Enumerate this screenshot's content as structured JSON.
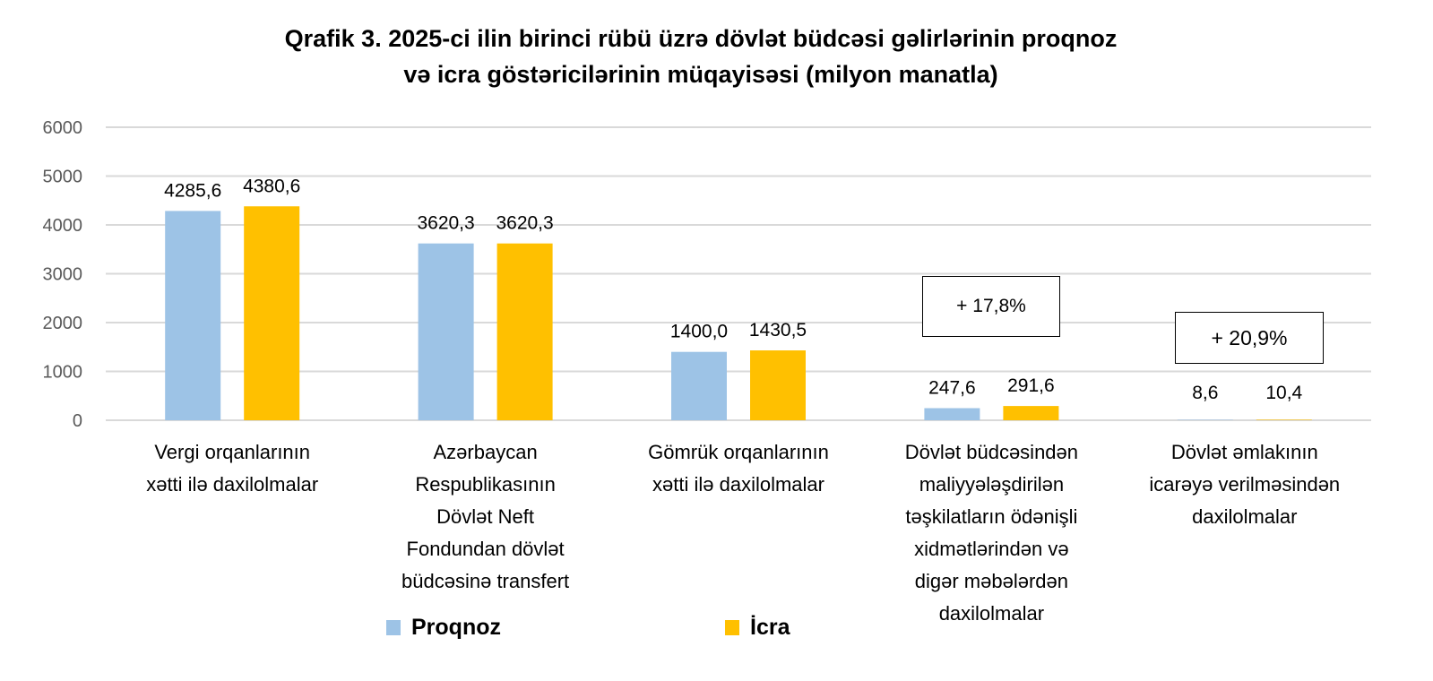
{
  "chart_data": {
    "type": "bar",
    "title_lines": [
      "Qrafik 3. 2025-ci ilin birinci rübü üzrə dövlət büdcəsi gəlirlərinin proqnoz",
      "və icra göstəricilərinin müqayisəsi (milyon manatla)"
    ],
    "categories": [
      "Vergi orqanlarının xətti ilə daxilolmalar",
      "Azərbaycan Respublikasının Dövlət Neft Fondundan dövlət büdcəsinə transfert",
      "Gömrük orqanlarının xətti ilə daxilolmalar",
      "Dövlət büdcəsindən maliyyələşdirilən təşkilatların ödənişli xidmətlərindən və digər məbələrdən daxilolmalar",
      "Dövlət əmlakının icarəyə verilməsindən daxilolmalar"
    ],
    "category_lines": [
      [
        "Vergi orqanlarının",
        "xətti ilə daxilolmalar"
      ],
      [
        "Azərbaycan",
        "Respublikasının",
        "Dövlət Neft",
        "Fondundan dövlət",
        "büdcəsinə transfert"
      ],
      [
        "Gömrük orqanlarının",
        "xətti ilə daxilolmalar"
      ],
      [
        "Dövlət büdcəsindən",
        "maliyyələşdirilən",
        "təşkilatların ödənişli",
        "xidmətlərindən və",
        "digər məbələrdən",
        "daxilolmalar"
      ],
      [
        "Dövlət əmlakının",
        "icarəyə verilməsindən",
        "daxilolmalar"
      ]
    ],
    "series": [
      {
        "name": "Proqnoz",
        "color": "#9DC3E6",
        "values": [
          4285.6,
          3620.3,
          1400.0,
          247.6,
          8.6
        ],
        "labels": [
          "4285,6",
          "3620,3",
          "1400,0",
          "247,6",
          "8,6"
        ]
      },
      {
        "name": "İcra",
        "color": "#FFC000",
        "values": [
          4380.6,
          3620.3,
          1430.5,
          291.6,
          10.4
        ],
        "labels": [
          "4380,6",
          "3620,3",
          "1430,5",
          "291,6",
          "10,4"
        ]
      }
    ],
    "yticks": [
      "0",
      "1000",
      "2000",
      "3000",
      "4000",
      "5000",
      "6000"
    ],
    "ylim": [
      0,
      6000
    ],
    "grid": true,
    "legend": "bottom",
    "annotations": [
      "+ 17,8%",
      "+  20,9%"
    ]
  }
}
